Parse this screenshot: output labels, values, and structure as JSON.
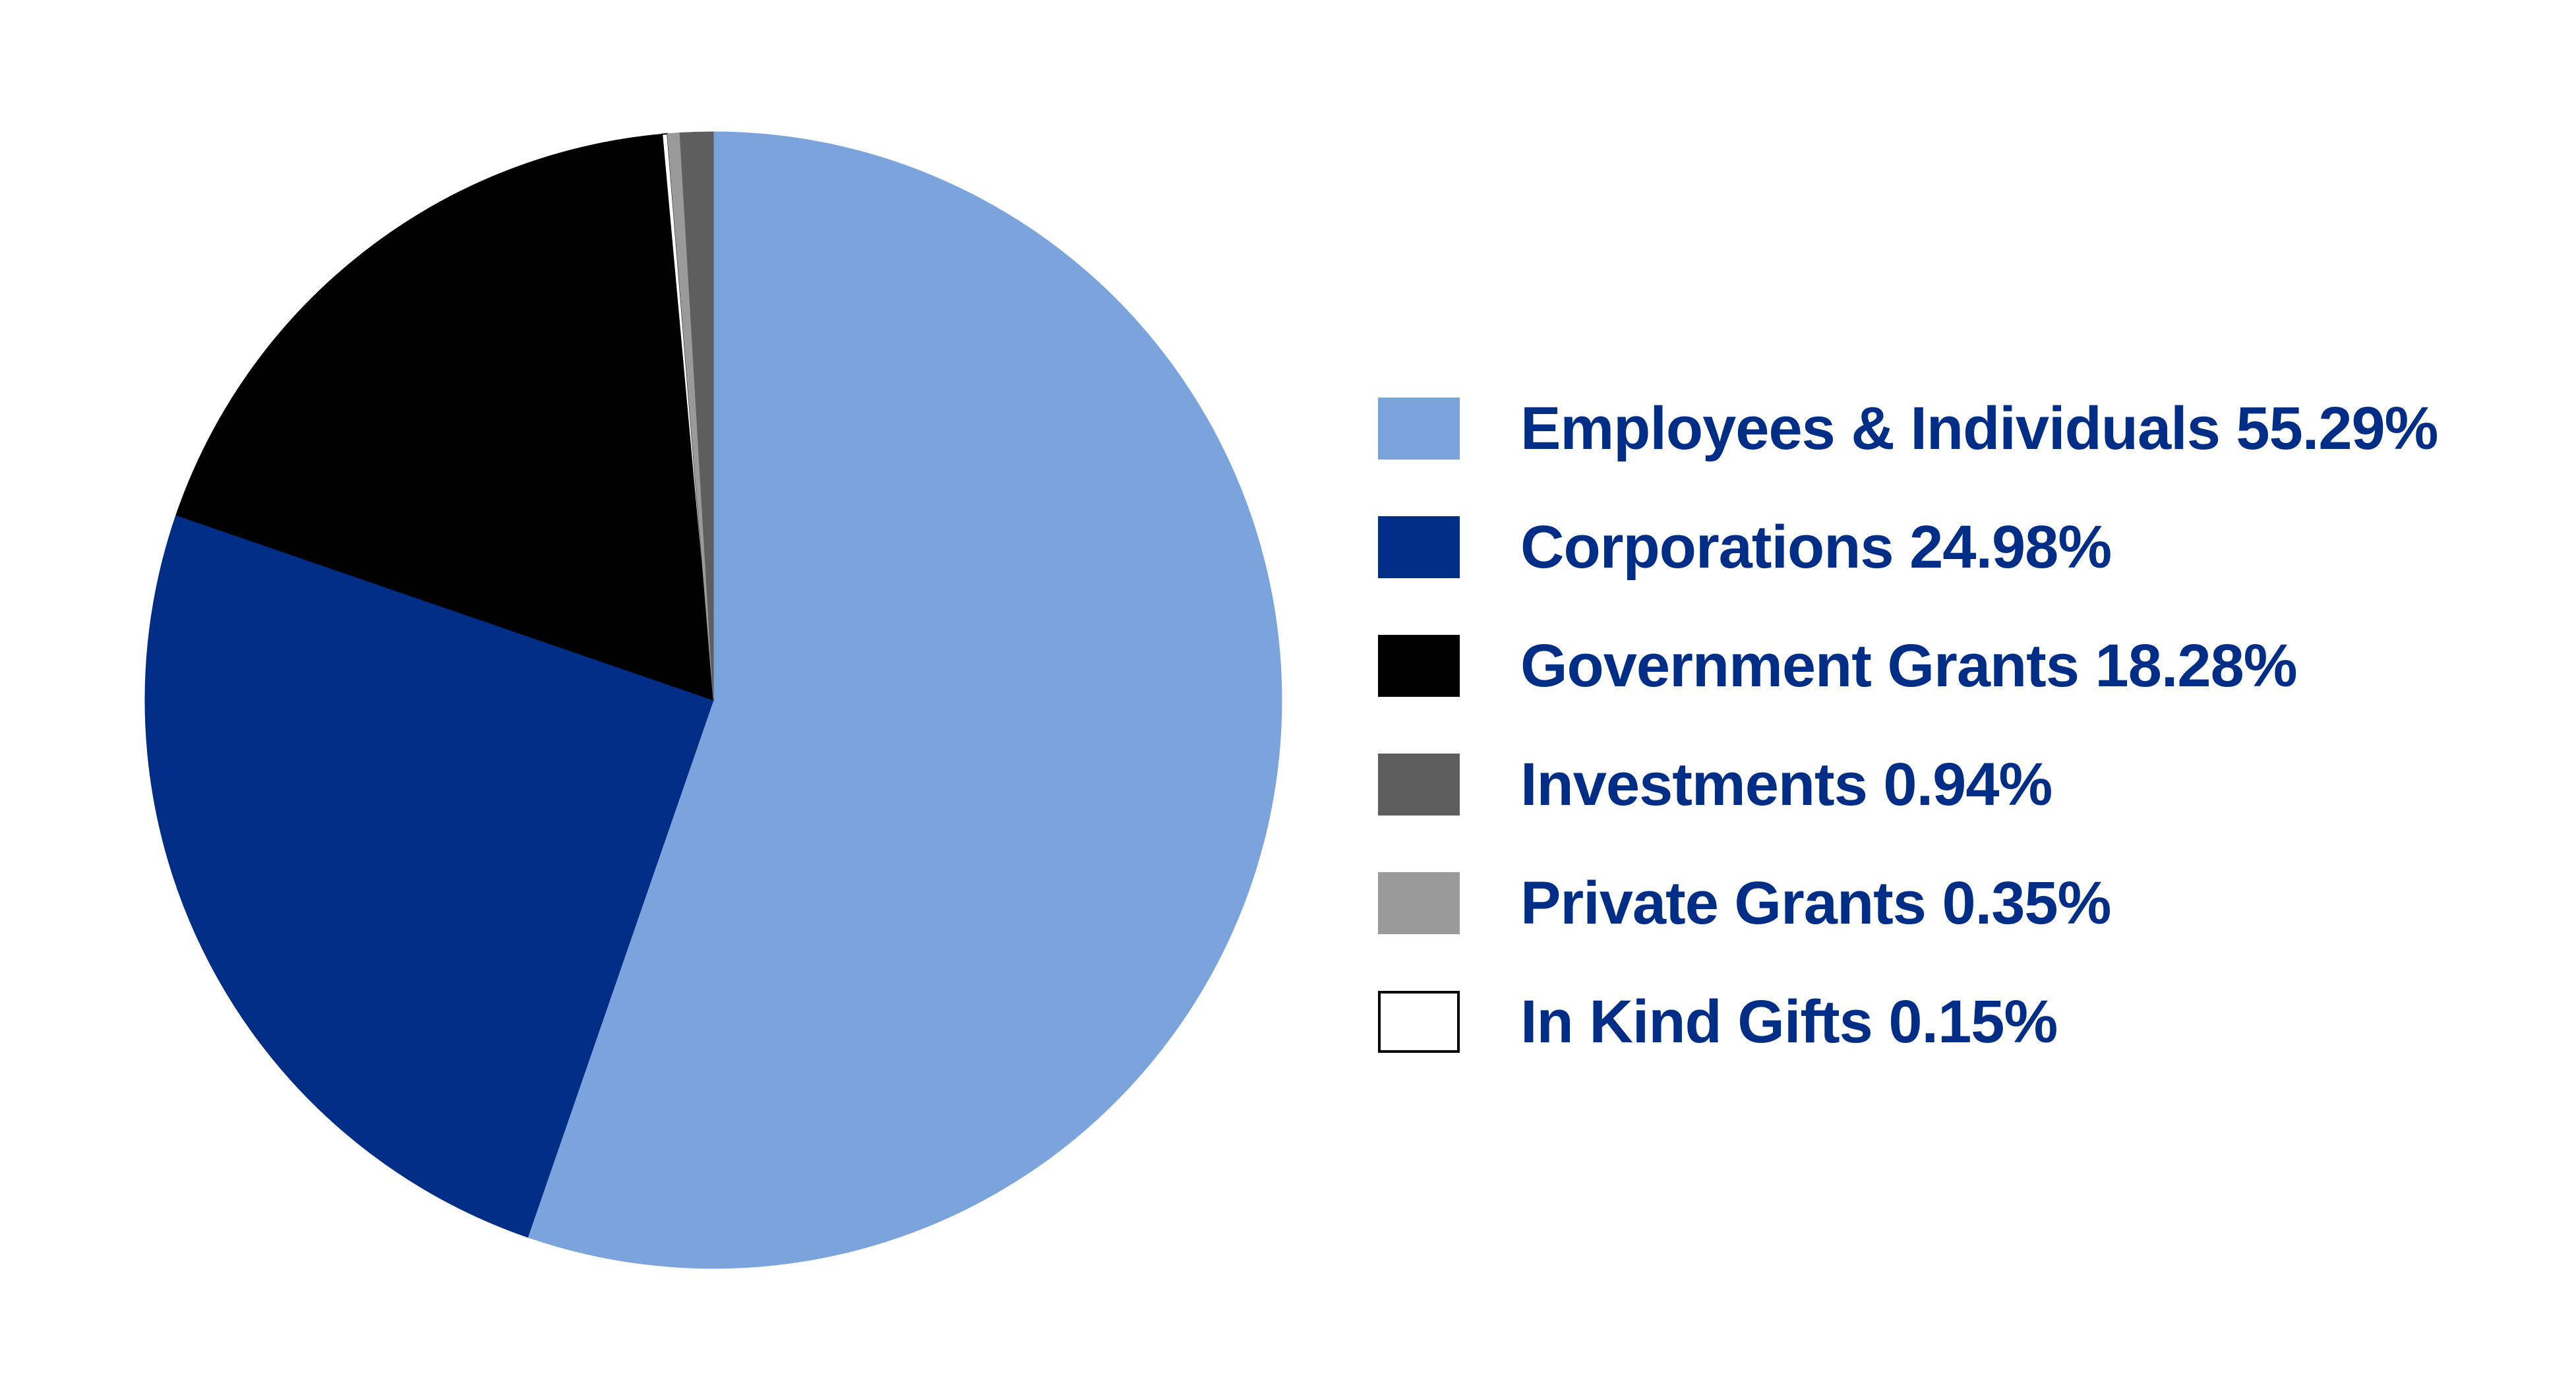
{
  "chart_data": {
    "type": "pie",
    "title": "",
    "slices": [
      {
        "label": "Employees & Individuals 55.29%",
        "value": 55.29,
        "color": "#7ba4dd"
      },
      {
        "label": "Corporations 24.98%",
        "value": 24.98,
        "color": "#002d86"
      },
      {
        "label": "Government Grants 18.28%",
        "value": 18.28,
        "color": "#000000"
      },
      {
        "label": "In Kind Gifts 0.15%",
        "value": 0.15,
        "color": "#ffffff"
      },
      {
        "label": "Private Grants 0.35%",
        "value": 0.35,
        "color": "#9a9a9a"
      },
      {
        "label": "Investments 0.94%",
        "value": 0.94,
        "color": "#5e5e5e"
      }
    ],
    "legend_order": [
      "Employees & Individuals 55.29%",
      "Corporations 24.98%",
      "Government Grants 18.28%",
      "Investments 0.94%",
      "Private Grants 0.35%",
      "In Kind Gifts 0.15%"
    ],
    "legend_position": "right",
    "direction": "clockwise from top"
  }
}
